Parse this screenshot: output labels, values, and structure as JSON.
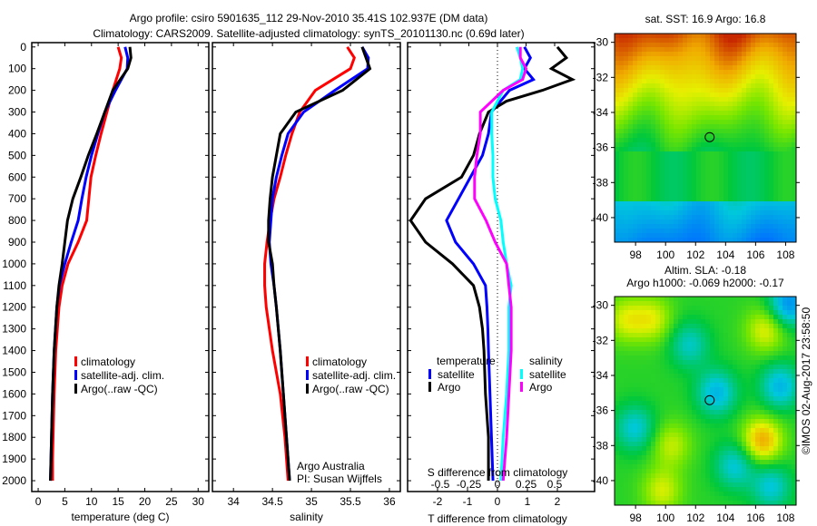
{
  "title": {
    "line1": "Argo profile: csiro 5901635_112 29-Nov-2010 35.41S 102.937E (DM data)",
    "line2": "Climatology: CARS2009. Satellite-adjusted climatology: synTS_20101130.nc (0.69d later)"
  },
  "colors": {
    "clim": "#ff0000",
    "sat": "#0000ff",
    "argo": "#000000",
    "s_sat": "#00ffff",
    "s_argo": "#ff00ff"
  },
  "chart_data": [
    {
      "type": "line",
      "name": "temperature",
      "xlabel": "temperature (deg C)",
      "xlim": [
        -1.2,
        32
      ],
      "xticks": [
        0,
        5,
        10,
        15,
        20,
        25,
        30
      ],
      "ylim": [
        2050,
        -20
      ],
      "yticks": [
        0,
        100,
        200,
        300,
        400,
        500,
        600,
        700,
        800,
        900,
        1000,
        1100,
        1200,
        1300,
        1400,
        1500,
        1600,
        1700,
        1800,
        1900,
        2000
      ],
      "depth": [
        0,
        50,
        100,
        200,
        300,
        400,
        500,
        600,
        700,
        800,
        900,
        1000,
        1100,
        1200,
        1400,
        1600,
        1800,
        1900,
        2000
      ],
      "series": [
        {
          "name": "climatology",
          "color": "clim",
          "values": [
            15.0,
            15.6,
            15.3,
            14.0,
            12.9,
            11.8,
            10.8,
            9.9,
            9.5,
            9.1,
            7.5,
            5.6,
            4.5,
            3.9,
            3.3,
            3.0,
            2.8,
            2.7,
            2.7
          ]
        },
        {
          "name": "satellite-adj. clim.",
          "color": "sat",
          "values": [
            16.3,
            16.8,
            16.7,
            14.5,
            12.5,
            11.2,
            10.0,
            9.0,
            8.2,
            7.5,
            6.2,
            5.0,
            4.0,
            3.5,
            3.0,
            2.7,
            2.5,
            2.4,
            2.3
          ]
        },
        {
          "name": "Argo(..raw -QC)",
          "color": "argo",
          "values": [
            17.2,
            17.4,
            16.8,
            14.0,
            12.5,
            11.0,
            9.4,
            8.0,
            6.5,
            5.5,
            5.0,
            4.5,
            3.9,
            3.5,
            3.0,
            2.7,
            2.5,
            2.4,
            2.3
          ]
        }
      ],
      "legend": [
        "climatology",
        "satellite-adj. clim.",
        "Argo(..raw -QC)"
      ]
    },
    {
      "type": "line",
      "name": "salinity",
      "xlabel": "salinity",
      "xlim": [
        33.73,
        36.14
      ],
      "xticks": [
        34,
        34.5,
        35,
        35.5,
        36
      ],
      "depth": [
        0,
        50,
        100,
        200,
        300,
        400,
        500,
        600,
        700,
        800,
        900,
        1000,
        1100,
        1200,
        1400,
        1600,
        1800,
        1900,
        2000
      ],
      "series": [
        {
          "name": "climatology",
          "color": "clim",
          "values": [
            35.46,
            35.55,
            35.5,
            35.05,
            34.85,
            34.75,
            34.67,
            34.6,
            34.52,
            34.47,
            34.43,
            34.4,
            34.4,
            34.42,
            34.5,
            34.6,
            34.66,
            34.68,
            34.7
          ]
        },
        {
          "name": "satellite-adj. clim.",
          "color": "sat",
          "values": [
            35.65,
            35.73,
            35.72,
            35.3,
            34.9,
            34.7,
            34.62,
            34.55,
            34.5,
            34.48,
            34.46,
            34.48,
            34.52,
            34.55,
            34.6,
            34.64,
            34.68,
            34.7,
            34.72
          ]
        },
        {
          "name": "Argo(..raw -QC)",
          "color": "argo",
          "values": [
            35.65,
            35.7,
            35.75,
            35.4,
            34.8,
            34.6,
            34.55,
            34.5,
            34.47,
            34.45,
            34.45,
            34.5,
            34.52,
            34.55,
            34.6,
            34.64,
            34.68,
            34.7,
            34.72
          ]
        }
      ],
      "legend": [
        "climatology",
        "satellite-adj. clim.",
        "Argo(..raw -QC)"
      ],
      "annotation": [
        "Argo Australia",
        "PI: Susan Wijffels"
      ]
    },
    {
      "type": "line",
      "name": "difference",
      "xlabel": "T difference from climatology",
      "xlabel_top": "S difference from climatology",
      "t_xlim": [
        -3.03,
        3.24
      ],
      "t_xticks": [
        "-2",
        "-1",
        "0",
        "1",
        "2"
      ],
      "s_xticks": [
        "-0.5",
        "-0.25",
        "0",
        "0.25",
        "0.5"
      ],
      "depth": [
        0,
        50,
        100,
        150,
        200,
        250,
        300,
        400,
        500,
        600,
        700,
        800,
        900,
        1000,
        1100,
        1200,
        1300,
        1400,
        1600,
        1800,
        2000
      ],
      "series": [
        {
          "name": "temperature satellite",
          "kind": "T",
          "color": "sat",
          "values": [
            0.9,
            1.1,
            0.9,
            1.2,
            0.4,
            0.1,
            -0.2,
            -0.3,
            -0.5,
            -0.9,
            -1.3,
            -1.7,
            -1.4,
            -0.8,
            -0.4,
            -0.35,
            -0.32,
            -0.3,
            -0.25,
            -0.2,
            -0.15
          ]
        },
        {
          "name": "temperature Argo",
          "kind": "T",
          "color": "argo",
          "values": [
            2.0,
            2.3,
            1.8,
            2.5,
            1.5,
            0.3,
            -0.3,
            -0.6,
            -0.8,
            -1.2,
            -2.4,
            -2.9,
            -2.4,
            -1.5,
            -0.8,
            -0.6,
            -0.5,
            -0.45,
            -0.4,
            -0.3,
            -0.3
          ]
        },
        {
          "name": "salinity satellite",
          "kind": "S",
          "color": "s_sat",
          "values": [
            0.17,
            0.2,
            0.22,
            0.2,
            0.05,
            0.0,
            -0.05,
            -0.05,
            -0.04,
            -0.04,
            -0.02,
            0.03,
            0.05,
            0.08,
            0.12,
            0.1,
            0.1,
            0.1,
            0.08,
            0.05,
            0.03
          ]
        },
        {
          "name": "salinity Argo",
          "kind": "S",
          "color": "s_argo",
          "values": [
            0.2,
            0.2,
            0.25,
            0.22,
            0.05,
            -0.05,
            -0.15,
            -0.15,
            -0.18,
            -0.2,
            -0.2,
            -0.1,
            -0.02,
            0.08,
            0.1,
            0.12,
            0.12,
            0.12,
            0.1,
            0.08,
            0.05
          ]
        }
      ],
      "legend": {
        "t_head": "temperature",
        "s_head": "salinity",
        "t_items": [
          "satellite",
          "Argo"
        ],
        "s_items": [
          "satellite",
          "Argo"
        ]
      }
    },
    {
      "type": "heatmap",
      "name": "sst-map",
      "title": "sat. SST: 16.9 Argo: 16.8",
      "xticks": [
        "98",
        "100",
        "102",
        "104",
        "106",
        "108"
      ],
      "yticks": [
        "-30",
        "-32",
        "-34",
        "-36",
        "-38",
        "-40"
      ],
      "marker": {
        "lon": 102.937,
        "lat": -35.41
      }
    },
    {
      "type": "heatmap",
      "name": "sla-map",
      "title1": "Altim. SLA: -0.18",
      "title2": "Argo h1000: -0.069 h2000: -0.17",
      "xticks": [
        "98",
        "100",
        "102",
        "104",
        "106",
        "108"
      ],
      "yticks": [
        "-30",
        "-32",
        "-34",
        "-36",
        "-38",
        "-40"
      ],
      "marker": {
        "lon": 102.937,
        "lat": -35.41
      }
    }
  ],
  "footer": "©IMOS 02-Aug-2017 23:58:50"
}
